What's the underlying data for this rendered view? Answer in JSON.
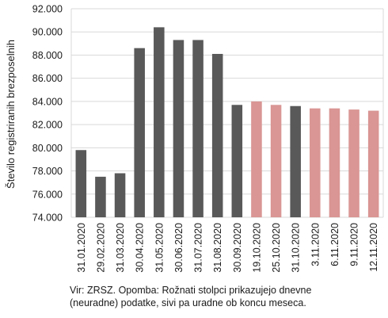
{
  "chart_data": {
    "type": "bar",
    "ylabel": "Število registriranih brezposelnih",
    "ylim": [
      74000,
      92000
    ],
    "yticks": [
      74000,
      76000,
      78000,
      80000,
      82000,
      84000,
      86000,
      88000,
      90000,
      92000
    ],
    "ytick_labels": [
      "74.000",
      "76.000",
      "78.000",
      "80.000",
      "82.000",
      "84.000",
      "86.000",
      "88.000",
      "90.000",
      "92.000"
    ],
    "grid": true,
    "categories": [
      "31.01.2020",
      "29.02.2020",
      "31.03.2020",
      "30.04.2020",
      "31.05.2020",
      "30.06.2020",
      "31.07.2020",
      "31.08.2020",
      "30.09.2020",
      "19.10.2020",
      "25.10.2020",
      "31.10.2020",
      "3.11.2020",
      "6.11.2020",
      "9.11.2020",
      "12.11.2020"
    ],
    "values": [
      79800,
      77500,
      77800,
      88600,
      90400,
      89300,
      89300,
      88100,
      83700,
      84000,
      83700,
      83600,
      83400,
      83400,
      83300,
      83200
    ],
    "series_kind": [
      "monthly",
      "monthly",
      "monthly",
      "monthly",
      "monthly",
      "monthly",
      "monthly",
      "monthly",
      "monthly",
      "daily",
      "daily",
      "monthly",
      "daily",
      "daily",
      "daily",
      "daily"
    ],
    "colors": {
      "monthly": "#595959",
      "daily": "#d99694",
      "grid": "#d9d9d9"
    }
  },
  "note": {
    "line1": "Vir: ZRSZ. Opomba: Rožnati stolpci prikazujejo dnevne",
    "line2": "(neuradne) podatke, sivi pa uradne ob koncu meseca."
  }
}
